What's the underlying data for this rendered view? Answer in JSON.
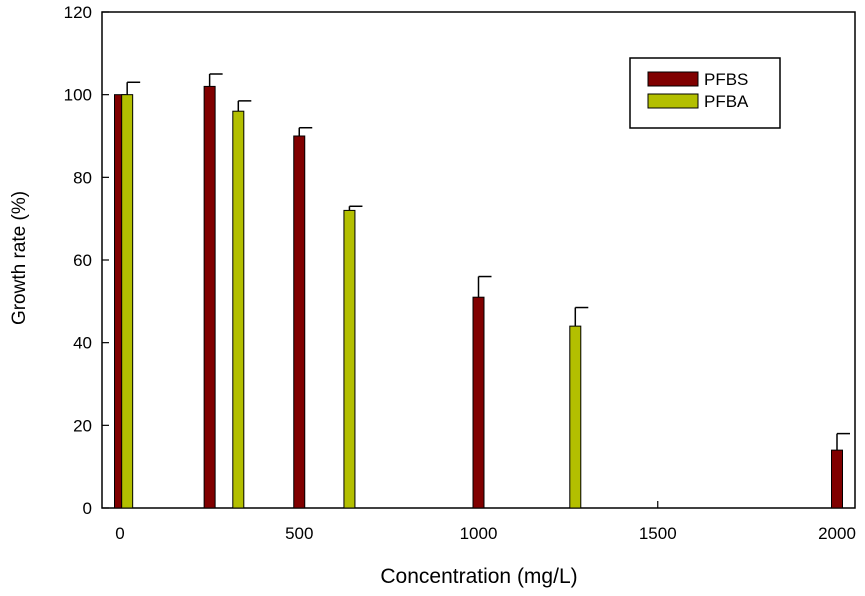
{
  "chart_data": {
    "type": "bar",
    "title": "",
    "xlabel": "Concentration (mg/L)",
    "ylabel": "Growth rate (%)",
    "xlim": [
      -50,
      2000
    ],
    "ylim": [
      0,
      120
    ],
    "xticks": [
      "0",
      "500",
      "1000",
      "1500",
      "2000"
    ],
    "yticks": [
      "0",
      "20",
      "40",
      "60",
      "80",
      "100",
      "120"
    ],
    "legend": {
      "position": "top-right"
    },
    "grid": false,
    "series": [
      {
        "name": "PFBS",
        "color": "#800000",
        "x": [
          0,
          250,
          500,
          1000,
          2000
        ],
        "values": [
          100,
          102,
          90,
          51,
          14
        ],
        "errors": [
          0,
          3,
          2,
          5,
          4
        ]
      },
      {
        "name": "PFBA",
        "color": "#b3bf00",
        "x": [
          20,
          330,
          640,
          1270
        ],
        "values": [
          100,
          96,
          72,
          44
        ],
        "errors": [
          3,
          2.5,
          1,
          4.5
        ]
      }
    ]
  }
}
